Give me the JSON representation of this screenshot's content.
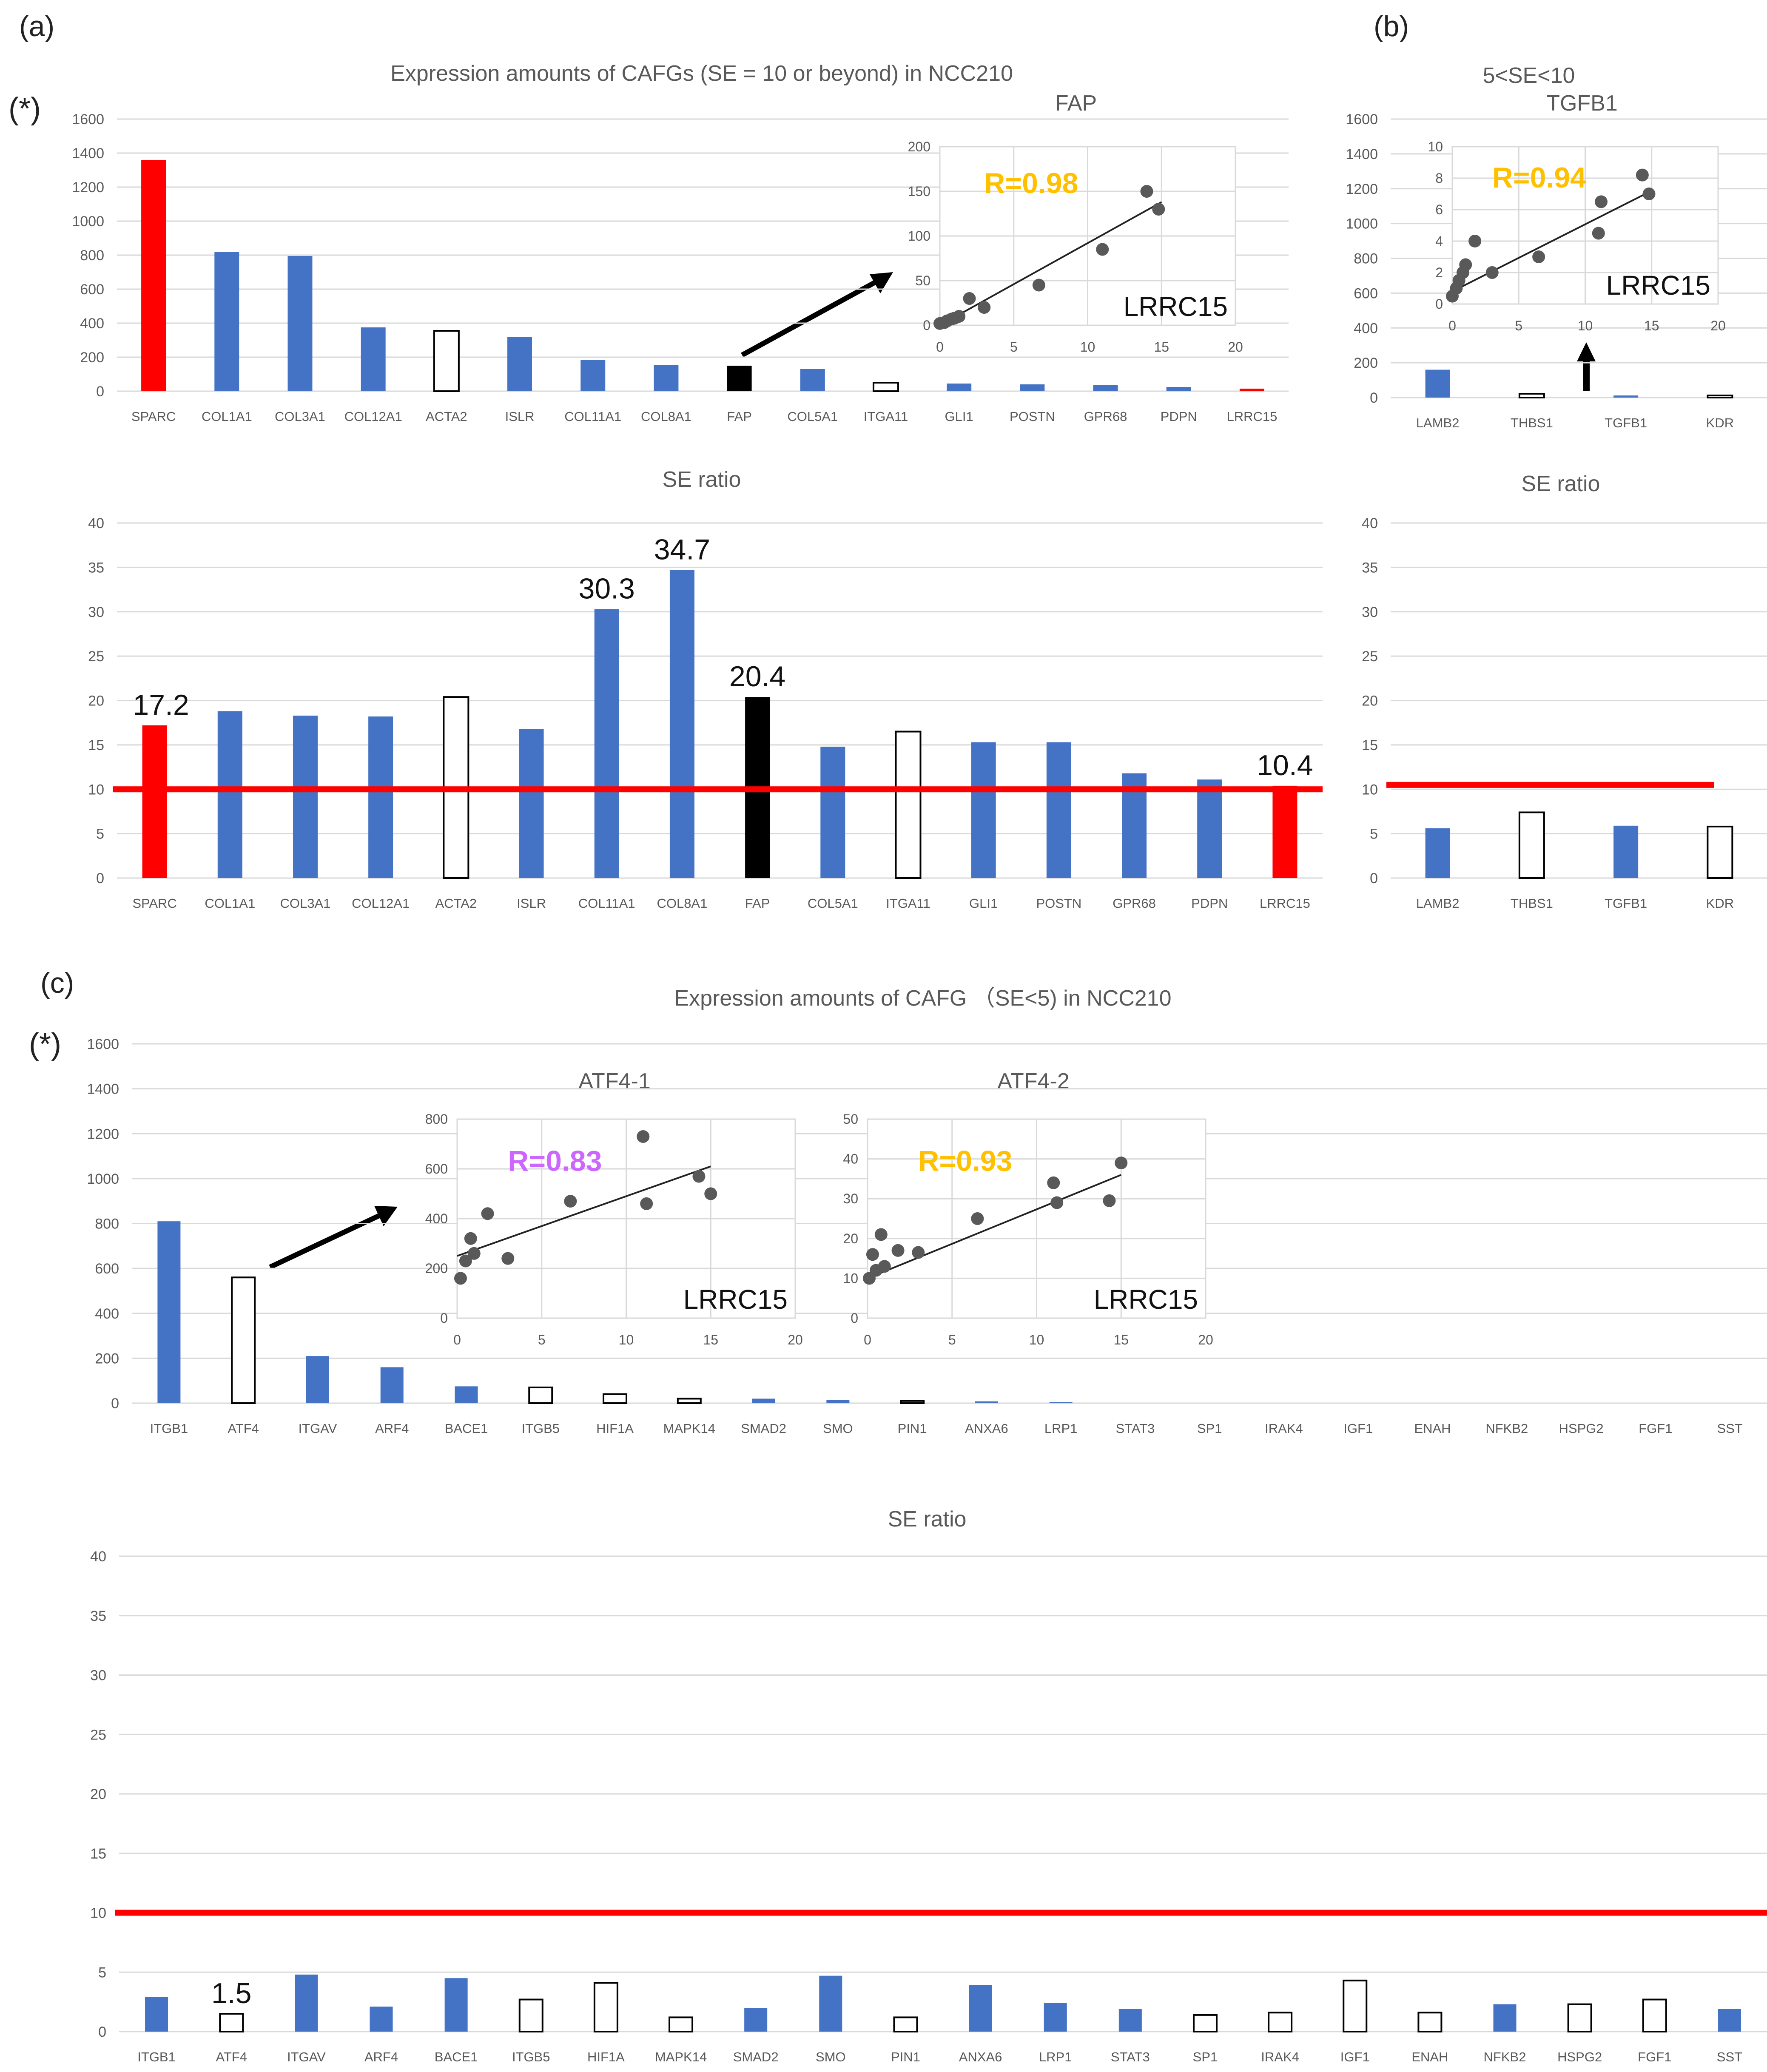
{
  "figure": {
    "panel_labels": {
      "a": "(a)",
      "b": "(b)",
      "c": "(c)"
    },
    "star_label": "(*)",
    "colors": {
      "blue": "#4472C4",
      "red": "#FF0000",
      "black": "#000000",
      "grid": "#D9D9D9",
      "axis_text": "#595959",
      "threshold": "#FF0000",
      "r_orange": "#FFC000",
      "r_purple": "#CC66FF"
    }
  },
  "chart_data": [
    {
      "id": "a_expr",
      "type": "bar",
      "title": "Expression amounts of CAFGs (SE = 10 or beyond) in NCC210",
      "categories": [
        "SPARC",
        "COL1A1",
        "COL3A1",
        "COL12A1",
        "ACTA2",
        "ISLR",
        "COL11A1",
        "COL8A1",
        "FAP",
        "COL5A1",
        "ITGA11",
        "GLI1",
        "POSTN",
        "GPR68",
        "PDPN",
        "LRRC15"
      ],
      "values": [
        1360,
        820,
        795,
        375,
        355,
        320,
        185,
        155,
        150,
        130,
        50,
        45,
        40,
        35,
        25,
        15
      ],
      "styles": [
        "red",
        "blue",
        "blue",
        "blue",
        "hollow",
        "blue",
        "blue",
        "blue",
        "black",
        "blue",
        "hollow",
        "blue",
        "blue",
        "blue",
        "blue",
        "red"
      ],
      "ylim": [
        0,
        1600
      ],
      "yticks": [
        0,
        200,
        400,
        600,
        800,
        1000,
        1200,
        1400,
        1600
      ]
    },
    {
      "id": "a_inset",
      "type": "scatter",
      "title": "FAP",
      "xlabel": "LRRC15",
      "annotation": "R=0.98",
      "annotation_color": "orange",
      "x": [
        0,
        0.3,
        0.5,
        0.8,
        1,
        1.3,
        2,
        3,
        6.7,
        11,
        14,
        14.8
      ],
      "y": [
        2,
        3,
        5,
        7,
        8,
        10,
        30,
        20,
        45,
        85,
        150,
        130
      ],
      "fit": [
        [
          0,
          0
        ],
        [
          15,
          138
        ]
      ],
      "xlim": [
        0,
        20
      ],
      "ylim": [
        0,
        200
      ],
      "xticks": [
        0,
        5,
        10,
        15,
        20
      ],
      "yticks": [
        0,
        50,
        100,
        150,
        200
      ]
    },
    {
      "id": "a_se",
      "type": "bar",
      "title": "SE ratio",
      "categories": [
        "SPARC",
        "COL1A1",
        "COL3A1",
        "COL12A1",
        "ACTA2",
        "ISLR",
        "COL11A1",
        "COL8A1",
        "FAP",
        "COL5A1",
        "ITGA11",
        "GLI1",
        "POSTN",
        "GPR68",
        "PDPN",
        "LRRC15"
      ],
      "values": [
        17.2,
        18.8,
        18.3,
        18.2,
        20.4,
        16.8,
        30.3,
        34.7,
        20.4,
        14.8,
        16.5,
        15.3,
        15.3,
        11.8,
        11.1,
        10.4
      ],
      "styles": [
        "red",
        "blue",
        "blue",
        "blue",
        "hollow",
        "blue",
        "blue",
        "blue",
        "black",
        "blue",
        "hollow",
        "blue",
        "blue",
        "blue",
        "blue",
        "red"
      ],
      "labels": {
        "0": "17.2",
        "6": "30.3",
        "7": "34.7",
        "8": "20.4",
        "15": "10.4"
      },
      "ylim": [
        0,
        40
      ],
      "yticks": [
        0,
        5,
        10,
        15,
        20,
        25,
        30,
        35,
        40
      ],
      "threshold": 10
    },
    {
      "id": "b_expr",
      "type": "bar",
      "title_line1": "5<SE<10",
      "title": "TGFB1",
      "categories": [
        "LAMB2",
        "THBS1",
        "TGFB1",
        "KDR"
      ],
      "values": [
        160,
        22,
        12,
        12
      ],
      "styles": [
        "blue",
        "hollow",
        "blue",
        "hollow"
      ],
      "ylim": [
        0,
        1600
      ],
      "yticks": [
        0,
        200,
        400,
        600,
        800,
        1000,
        1200,
        1400,
        1600
      ]
    },
    {
      "id": "b_inset",
      "type": "scatter",
      "xlabel": "LRRC15",
      "annotation": "R=0.94",
      "annotation_color": "orange",
      "x": [
        0,
        0.3,
        0.5,
        0.8,
        1,
        1.7,
        3,
        6.5,
        11,
        11.2,
        14.3,
        14.8
      ],
      "y": [
        0.5,
        1,
        1.5,
        2,
        2.5,
        4,
        2,
        3,
        4.5,
        6.5,
        8.2,
        7
      ],
      "fit": [
        [
          0,
          0.8
        ],
        [
          15,
          7.2
        ]
      ],
      "xlim": [
        0,
        20
      ],
      "ylim": [
        0,
        10
      ],
      "xticks": [
        0,
        5,
        10,
        15,
        20
      ],
      "yticks": [
        0,
        2,
        4,
        6,
        8,
        10
      ]
    },
    {
      "id": "b_se",
      "type": "bar",
      "title": "SE ratio",
      "categories": [
        "LAMB2",
        "THBS1",
        "TGFB1",
        "KDR"
      ],
      "values": [
        5.6,
        7.4,
        5.9,
        5.8
      ],
      "styles": [
        "blue",
        "hollow",
        "blue",
        "hollow"
      ],
      "ylim": [
        0,
        40
      ],
      "yticks": [
        0,
        5,
        10,
        15,
        20,
        25,
        30,
        35,
        40
      ],
      "threshold": 10.5
    },
    {
      "id": "c_expr",
      "type": "bar",
      "title": "Expression amounts of CAFG （SE<5) in NCC210",
      "categories": [
        "ITGB1",
        "ATF4",
        "ITGAV",
        "ARF4",
        "BACE1",
        "ITGB5",
        "HIF1A",
        "MAPK14",
        "SMAD2",
        "SMO",
        "PIN1",
        "ANXA6",
        "LRP1",
        "STAT3",
        "SP1",
        "IRAK4",
        "IGF1",
        "ENAH",
        "NFKB2",
        "HSPG2",
        "FGF1",
        "SST"
      ],
      "values": [
        810,
        560,
        210,
        160,
        75,
        70,
        40,
        20,
        20,
        15,
        10,
        8,
        5,
        0,
        0,
        0,
        0,
        0,
        0,
        0,
        0,
        0
      ],
      "styles": [
        "blue",
        "hollow",
        "blue",
        "blue",
        "blue",
        "hollow",
        "hollow",
        "hollow",
        "blue",
        "blue",
        "hollow",
        "blue",
        "blue",
        "blue",
        "hollow",
        "hollow",
        "hollow",
        "hollow",
        "blue",
        "hollow",
        "hollow",
        "blue"
      ],
      "ylim": [
        0,
        1600
      ],
      "yticks": [
        0,
        200,
        400,
        600,
        800,
        1000,
        1200,
        1400,
        1600
      ]
    },
    {
      "id": "c_inset1",
      "type": "scatter",
      "title": "ATF4-1",
      "xlabel": "LRRC15",
      "annotation": "R=0.83",
      "annotation_color": "purple",
      "x": [
        0.2,
        0.5,
        0.8,
        1,
        1.8,
        3,
        6.7,
        11,
        11.2,
        14.3,
        15
      ],
      "y": [
        160,
        230,
        320,
        260,
        420,
        240,
        470,
        730,
        460,
        570,
        500
      ],
      "fit": [
        [
          0,
          250
        ],
        [
          15,
          610
        ]
      ],
      "xlim": [
        0,
        20
      ],
      "ylim": [
        0,
        800
      ],
      "xticks": [
        0,
        5,
        10,
        15,
        20
      ],
      "yticks": [
        0,
        200,
        400,
        600,
        800
      ]
    },
    {
      "id": "c_inset2",
      "type": "scatter",
      "title": "ATF4-2",
      "xlabel": "LRRC15",
      "annotation": "R=0.93",
      "annotation_color": "orange",
      "x": [
        0.1,
        0.3,
        0.5,
        0.8,
        1,
        1.8,
        3,
        6.5,
        11,
        11.2,
        14.3,
        15
      ],
      "y": [
        10,
        16,
        12,
        21,
        13,
        17,
        16.5,
        25,
        34,
        29,
        29.5,
        39
      ],
      "fit": [
        [
          0,
          10
        ],
        [
          15,
          36
        ]
      ],
      "xlim": [
        0,
        20
      ],
      "ylim": [
        0,
        50
      ],
      "xticks": [
        0,
        5,
        10,
        15,
        20
      ],
      "yticks": [
        0,
        10,
        20,
        30,
        40,
        50
      ]
    },
    {
      "id": "c_se",
      "type": "bar",
      "title": "SE ratio",
      "categories": [
        "ITGB1",
        "ATF4",
        "ITGAV",
        "ARF4",
        "BACE1",
        "ITGB5",
        "HIF1A",
        "MAPK14",
        "SMAD2",
        "SMO",
        "PIN1",
        "ANXA6",
        "LRP1",
        "STAT3",
        "SP1",
        "IRAK4",
        "IGF1",
        "ENAH",
        "NFKB2",
        "HSPG2",
        "FGF1",
        "SST"
      ],
      "values": [
        2.9,
        1.5,
        4.8,
        2.1,
        4.5,
        2.7,
        4.1,
        1.2,
        2.0,
        4.7,
        1.2,
        3.9,
        2.4,
        1.9,
        1.4,
        1.6,
        4.3,
        1.6,
        2.3,
        2.3,
        2.7,
        1.9
      ],
      "styles": [
        "blue",
        "hollow",
        "blue",
        "blue",
        "blue",
        "hollow",
        "hollow",
        "hollow",
        "blue",
        "blue",
        "hollow",
        "blue",
        "blue",
        "blue",
        "hollow",
        "hollow",
        "hollow",
        "hollow",
        "blue",
        "hollow",
        "hollow",
        "blue"
      ],
      "labels": {
        "1": "1.5"
      },
      "ylim": [
        0,
        40
      ],
      "yticks": [
        0,
        5,
        10,
        15,
        20,
        25,
        30,
        35,
        40
      ],
      "threshold": 10
    }
  ]
}
